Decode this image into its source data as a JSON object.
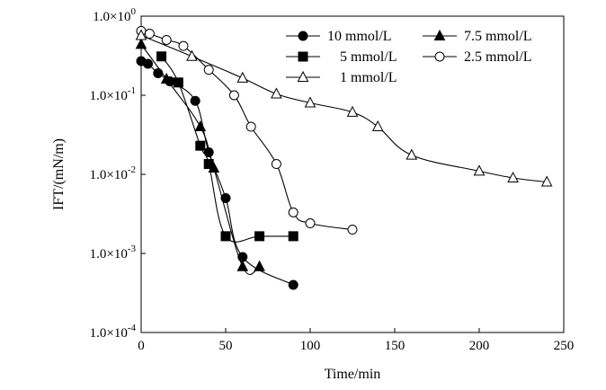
{
  "chart_data": {
    "type": "line",
    "xlabel": "Time/min",
    "ylabel": "IFT/(mN/m)",
    "xlim": [
      0,
      250
    ],
    "ylim": [
      0.0001,
      1
    ],
    "yscale": "log",
    "x_ticks": [
      0,
      50,
      100,
      150,
      200,
      250
    ],
    "y_ticks": [
      {
        "value": 1,
        "mantissa": "1.0×10",
        "exp": "0"
      },
      {
        "value": 0.1,
        "mantissa": "1.0×10",
        "exp": "-1"
      },
      {
        "value": 0.01,
        "mantissa": "1.0×10",
        "exp": "-2"
      },
      {
        "value": 0.001,
        "mantissa": "1.0×10",
        "exp": "-3"
      },
      {
        "value": 0.0001,
        "mantissa": "1.0×10",
        "exp": "-4"
      }
    ],
    "grid": false,
    "legend_position": "top-right",
    "series": [
      {
        "name": "10 mmol/L",
        "marker": "filled-circle",
        "x": [
          0,
          4,
          10,
          17,
          32,
          40,
          50,
          60,
          90
        ],
        "y": [
          0.27,
          0.25,
          0.19,
          0.15,
          0.085,
          0.019,
          0.005,
          0.0009,
          0.0004
        ]
      },
      {
        "name": "7.5 mmol/L",
        "marker": "filled-triangle",
        "x": [
          0,
          15,
          35,
          43,
          60,
          70
        ],
        "y": [
          0.44,
          0.16,
          0.04,
          0.012,
          0.00068,
          0.00068
        ]
      },
      {
        "name": "5 mmol/L",
        "marker": "filled-square",
        "x": [
          12,
          22,
          35,
          40,
          50,
          70,
          90
        ],
        "y": [
          0.31,
          0.145,
          0.023,
          0.0135,
          0.00165,
          0.00165,
          0.00165
        ]
      },
      {
        "name": "2.5 mmol/L",
        "marker": "open-circle",
        "x": [
          0,
          5,
          15,
          25,
          40,
          55,
          65,
          80,
          90,
          100,
          125
        ],
        "y": [
          0.65,
          0.6,
          0.5,
          0.42,
          0.21,
          0.1,
          0.04,
          0.0135,
          0.0033,
          0.0024,
          0.002
        ]
      },
      {
        "name": "1 mmol/L",
        "marker": "open-triangle",
        "x": [
          0,
          30,
          60,
          80,
          100,
          125,
          140,
          160,
          200,
          220,
          240
        ],
        "y": [
          0.57,
          0.31,
          0.165,
          0.104,
          0.08,
          0.061,
          0.04,
          0.0175,
          0.011,
          0.009,
          0.008
        ]
      }
    ]
  }
}
